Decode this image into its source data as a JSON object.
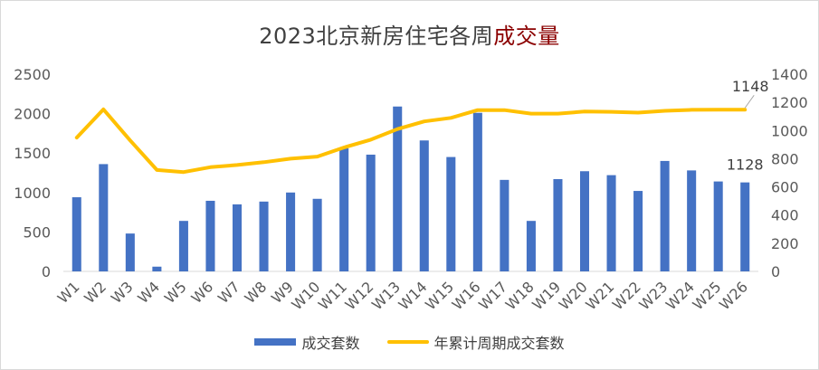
{
  "chart_data": {
    "type": "bar",
    "title_main": "2023北京新房住宅各周",
    "title_highlight": "成交量",
    "title_colors": {
      "main": "#404040",
      "highlight": "#8b0000"
    },
    "categories": [
      "W1",
      "W2",
      "W3",
      "W4",
      "W5",
      "W6",
      "W7",
      "W8",
      "W9",
      "W10",
      "W11",
      "W12",
      "W13",
      "W14",
      "W15",
      "W16",
      "W17",
      "W18",
      "W19",
      "W20",
      "W21",
      "W22",
      "W23",
      "W24",
      "W25",
      "W26"
    ],
    "y_left": {
      "range": [
        0,
        2500
      ],
      "ticks": [
        0,
        500,
        1000,
        1500,
        2000,
        2500
      ]
    },
    "y_right": {
      "range": [
        0,
        1400
      ],
      "ticks": [
        0,
        200,
        400,
        600,
        800,
        1000,
        1200,
        1400
      ]
    },
    "grid": false,
    "legend_position": "bottom",
    "series": [
      {
        "name": "成交套数",
        "type": "bar",
        "axis": "left",
        "color": "#4472c4",
        "values": [
          940,
          1360,
          480,
          60,
          640,
          895,
          850,
          885,
          1000,
          920,
          1560,
          1480,
          2090,
          1660,
          1450,
          2010,
          1160,
          640,
          1170,
          1270,
          1220,
          1020,
          1400,
          1280,
          1140,
          1128
        ]
      },
      {
        "name": "年累计周期成交套数",
        "type": "line",
        "axis": "right",
        "color": "#ffc000",
        "values": [
          950,
          1150,
          930,
          720,
          705,
          740,
          755,
          775,
          800,
          815,
          880,
          935,
          1010,
          1065,
          1090,
          1145,
          1145,
          1120,
          1120,
          1135,
          1133,
          1127,
          1140,
          1147,
          1148,
          1148
        ]
      }
    ],
    "annotations": [
      {
        "text": "1128",
        "series": "成交套数",
        "category": "W26"
      },
      {
        "text": "1148",
        "series": "年累计周期成交套数",
        "category": "W26"
      }
    ]
  }
}
